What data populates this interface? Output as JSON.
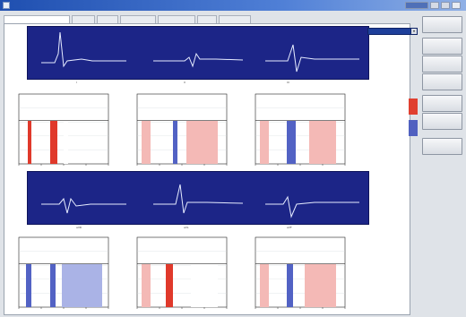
{
  "titlebar": {
    "title": "",
    "buttons": [
      "minimize",
      "maximize",
      "close"
    ]
  },
  "tabs": [
    {
      "label": "",
      "active": true
    },
    {
      "label": "",
      "active": false
    },
    {
      "label": "",
      "active": false
    },
    {
      "label": "",
      "active": false
    },
    {
      "label": "",
      "active": false
    },
    {
      "label": "",
      "active": false
    },
    {
      "label": "",
      "active": false
    }
  ],
  "wave_rows": [
    {
      "channels": [
        {
          "label": "I"
        },
        {
          "label": "II"
        },
        {
          "label": "III"
        }
      ]
    },
    {
      "channels": [
        {
          "label": "aVR"
        },
        {
          "label": "aVL"
        },
        {
          "label": "aVF"
        }
      ]
    }
  ],
  "chart_rows": [
    {
      "charts": [
        {
          "bars": [
            {
              "color": "red",
              "x": 0.1,
              "w": 0.04
            },
            {
              "color": "red",
              "x": 0.35,
              "w": 0.08
            },
            {
              "color": "white",
              "x": 0.5,
              "w": 0.05
            }
          ]
        },
        {
          "bars": [
            {
              "color": "lightred",
              "x": 0.05,
              "w": 0.1
            },
            {
              "color": "blue",
              "x": 0.4,
              "w": 0.05
            },
            {
              "color": "lightred",
              "x": 0.55,
              "w": 0.35
            }
          ]
        },
        {
          "bars": [
            {
              "color": "lightred",
              "x": 0.05,
              "w": 0.1
            },
            {
              "color": "blue",
              "x": 0.35,
              "w": 0.1
            },
            {
              "color": "lightred",
              "x": 0.6,
              "w": 0.3
            }
          ]
        }
      ]
    },
    {
      "charts": [
        {
          "bars": [
            {
              "color": "blue",
              "x": 0.08,
              "w": 0.06
            },
            {
              "color": "blue",
              "x": 0.35,
              "w": 0.06
            },
            {
              "color": "lightblue",
              "x": 0.48,
              "w": 0.45
            }
          ]
        },
        {
          "bars": [
            {
              "color": "lightred",
              "x": 0.05,
              "w": 0.1
            },
            {
              "color": "red",
              "x": 0.32,
              "w": 0.08
            },
            {
              "color": "white",
              "x": 0.6,
              "w": 0.3
            }
          ]
        },
        {
          "bars": [
            {
              "color": "lightred",
              "x": 0.05,
              "w": 0.1
            },
            {
              "color": "blue",
              "x": 0.35,
              "w": 0.07
            },
            {
              "color": "lightred",
              "x": 0.55,
              "w": 0.35
            }
          ]
        }
      ]
    }
  ],
  "sidebar": {
    "combo_value": "",
    "info_lines": [
      "",
      "",
      ""
    ],
    "info_bold": "",
    "scale_top": "",
    "scale_mid": "",
    "scale_bottom": ""
  },
  "right_buttons": [
    {
      "label": "",
      "enabled": true
    },
    {
      "label": "",
      "enabled": true
    },
    {
      "label": "",
      "enabled": false
    },
    {
      "label": "",
      "enabled": true
    },
    {
      "label": "",
      "enabled": true
    },
    {
      "label": "",
      "enabled": true
    },
    {
      "label": "",
      "enabled": true
    }
  ],
  "colors": {
    "wave_bg": "#1c2587",
    "wave_line": "#e6ecff",
    "red": "#e0392b",
    "lightred": "#f4b9b6",
    "blue": "#5262c4",
    "lightblue": "#aab3e6"
  }
}
